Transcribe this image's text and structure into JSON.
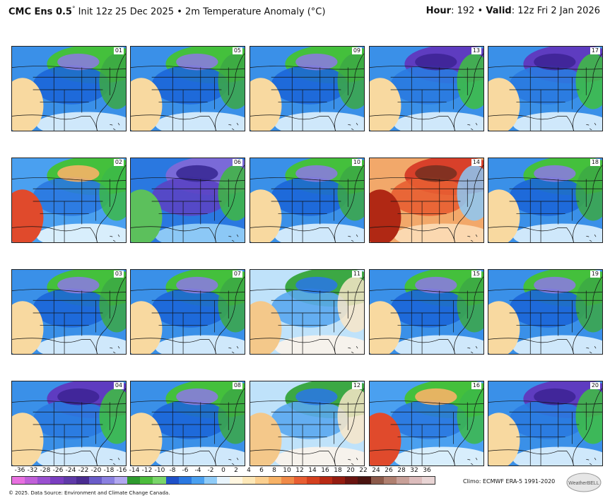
{
  "header": {
    "model": "CMC Ens 0.5",
    "degree": "°",
    "init": " Init 12z 25 Dec 2025 • 2m Temperature Anomaly (°C)",
    "hour_label": "Hour",
    "hour_value": ": 192 • ",
    "valid_label": "Valid",
    "valid_value": ": 12z Fri 2 Jan 2026"
  },
  "members": [
    {
      "id": "01",
      "pattern": "cool-east"
    },
    {
      "id": "05",
      "pattern": "cool-east"
    },
    {
      "id": "09",
      "pattern": "cool-east"
    },
    {
      "id": "13",
      "pattern": "cold-north"
    },
    {
      "id": "17",
      "pattern": "cold-north"
    },
    {
      "id": "02",
      "pattern": "warm-sw"
    },
    {
      "id": "06",
      "pattern": "cold-center"
    },
    {
      "id": "10",
      "pattern": "cool-east"
    },
    {
      "id": "14",
      "pattern": "hot-west"
    },
    {
      "id": "18",
      "pattern": "cool-east"
    },
    {
      "id": "03",
      "pattern": "cool-east"
    },
    {
      "id": "07",
      "pattern": "cool-east"
    },
    {
      "id": "11",
      "pattern": "mild"
    },
    {
      "id": "15",
      "pattern": "cool-east"
    },
    {
      "id": "19",
      "pattern": "cool-east"
    },
    {
      "id": "04",
      "pattern": "cold-north"
    },
    {
      "id": "08",
      "pattern": "cool-east"
    },
    {
      "id": "12",
      "pattern": "mild"
    },
    {
      "id": "16",
      "pattern": "warm-sw"
    },
    {
      "id": "20",
      "pattern": "cold-north"
    }
  ],
  "colorbar": {
    "ticks": [
      "-36",
      "-32",
      "-28",
      "-26",
      "-24",
      "-22",
      "-20",
      "-18",
      "-16",
      "-14",
      "-12",
      "-10",
      "-8",
      "-6",
      "-4",
      "-2",
      "0",
      "2",
      "4",
      "6",
      "8",
      "10",
      "12",
      "14",
      "16",
      "18",
      "20",
      "22",
      "24",
      "26",
      "28",
      "32",
      "36"
    ],
    "colors": [
      "#e870e0",
      "#c060d8",
      "#9a50d0",
      "#7a3ec0",
      "#5f3aa8",
      "#4a2c90",
      "#6a5cc8",
      "#8a80e0",
      "#b2a8f0",
      "#2e9a2e",
      "#4cbc3c",
      "#7ad66a",
      "#1e50c8",
      "#2a78e0",
      "#4aa0f0",
      "#90ccf8",
      "#e8f4fc",
      "#fff6e0",
      "#fde8b8",
      "#fbd090",
      "#f7b266",
      "#f08a48",
      "#e85e32",
      "#d4401e",
      "#b82a14",
      "#941c10",
      "#6a1410",
      "#4a1410",
      "#8c5a4a",
      "#b08070",
      "#c8a098",
      "#dcbcbc",
      "#e8d4d4"
    ]
  },
  "climo": "Climo: ECMWF ERA-5 1991-2020",
  "footer": "© 2025. Data Source: Environment and Climate Change Canada.",
  "logo_text": "WeatherBELL"
}
